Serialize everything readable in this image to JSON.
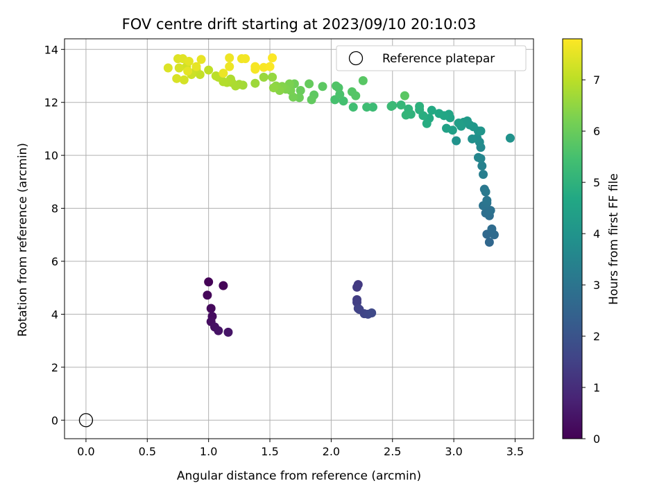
{
  "chart_data": {
    "type": "scatter",
    "title": "FOV centre drift starting at 2023/09/10 20:10:03",
    "xlabel": "Angular distance from reference (arcmin)",
    "ylabel": "Rotation from reference (arcmin)",
    "xlim": [
      -0.175,
      3.65
    ],
    "ylim": [
      -0.7,
      14.4
    ],
    "xticks": [
      0.0,
      0.5,
      1.0,
      1.5,
      2.0,
      2.5,
      3.0,
      3.5
    ],
    "xtick_labels": [
      "0.0",
      "0.5",
      "1.0",
      "1.5",
      "2.0",
      "2.5",
      "3.0",
      "3.5"
    ],
    "yticks": [
      0,
      2,
      4,
      6,
      8,
      10,
      12,
      14
    ],
    "ytick_labels": [
      "0",
      "2",
      "4",
      "6",
      "8",
      "10",
      "12",
      "14"
    ],
    "grid": true,
    "colorbar": {
      "label": "Hours from first FF file",
      "colormap": "viridis",
      "range": [
        0,
        7.8
      ],
      "ticks": [
        0,
        1,
        2,
        3,
        4,
        5,
        6,
        7
      ],
      "tick_labels": [
        "0",
        "1",
        "2",
        "3",
        "4",
        "5",
        "6",
        "7"
      ]
    },
    "legend": {
      "placement": "top-right",
      "entries": [
        "Reference platepar"
      ]
    },
    "reference_point": {
      "x": 0.0,
      "y": 0.0
    },
    "series": [
      {
        "values": [
          {
            "x": 1.0,
            "y": 5.22,
            "c": 0.05
          },
          {
            "x": 1.12,
            "y": 5.08,
            "c": 0.1
          },
          {
            "x": 0.99,
            "y": 4.72,
            "c": 0.15
          },
          {
            "x": 1.02,
            "y": 4.22,
            "c": 0.2
          },
          {
            "x": 1.03,
            "y": 3.92,
            "c": 0.25
          },
          {
            "x": 1.02,
            "y": 3.72,
            "c": 0.3
          },
          {
            "x": 1.05,
            "y": 3.52,
            "c": 0.35
          },
          {
            "x": 1.08,
            "y": 3.38,
            "c": 0.4
          },
          {
            "x": 1.16,
            "y": 3.32,
            "c": 0.45
          },
          {
            "x": 2.22,
            "y": 5.12,
            "c": 1.3
          },
          {
            "x": 2.21,
            "y": 5.02,
            "c": 1.35
          },
          {
            "x": 2.21,
            "y": 4.55,
            "c": 1.4
          },
          {
            "x": 2.21,
            "y": 4.45,
            "c": 1.45
          },
          {
            "x": 2.22,
            "y": 4.22,
            "c": 1.5
          },
          {
            "x": 2.23,
            "y": 4.18,
            "c": 1.55
          },
          {
            "x": 2.27,
            "y": 4.02,
            "c": 1.6
          },
          {
            "x": 2.3,
            "y": 4.0,
            "c": 1.65
          },
          {
            "x": 2.33,
            "y": 4.05,
            "c": 1.7
          },
          {
            "x": 3.29,
            "y": 6.72,
            "c": 2.6
          },
          {
            "x": 3.27,
            "y": 7.02,
            "c": 2.65
          },
          {
            "x": 3.33,
            "y": 7.0,
            "c": 2.7
          },
          {
            "x": 3.31,
            "y": 7.22,
            "c": 2.75
          },
          {
            "x": 3.29,
            "y": 7.72,
            "c": 2.8
          },
          {
            "x": 3.26,
            "y": 7.82,
            "c": 2.85
          },
          {
            "x": 3.3,
            "y": 7.92,
            "c": 2.9
          },
          {
            "x": 3.24,
            "y": 8.1,
            "c": 2.95
          },
          {
            "x": 3.27,
            "y": 8.2,
            "c": 3.0
          },
          {
            "x": 3.27,
            "y": 8.3,
            "c": 3.05
          },
          {
            "x": 3.25,
            "y": 8.72,
            "c": 3.1
          },
          {
            "x": 3.26,
            "y": 8.62,
            "c": 3.15
          },
          {
            "x": 3.24,
            "y": 9.28,
            "c": 3.3
          },
          {
            "x": 3.23,
            "y": 9.6,
            "c": 3.4
          },
          {
            "x": 3.22,
            "y": 9.88,
            "c": 3.5
          },
          {
            "x": 3.2,
            "y": 9.92,
            "c": 3.55
          },
          {
            "x": 3.22,
            "y": 10.3,
            "c": 3.65
          },
          {
            "x": 3.21,
            "y": 10.5,
            "c": 3.75
          },
          {
            "x": 3.19,
            "y": 10.65,
            "c": 3.85
          },
          {
            "x": 3.15,
            "y": 10.62,
            "c": 3.9
          },
          {
            "x": 3.02,
            "y": 10.55,
            "c": 3.95
          },
          {
            "x": 3.2,
            "y": 10.92,
            "c": 4.0
          },
          {
            "x": 3.22,
            "y": 10.92,
            "c": 4.05
          },
          {
            "x": 3.16,
            "y": 11.08,
            "c": 4.1
          },
          {
            "x": 3.13,
            "y": 11.15,
            "c": 4.15
          },
          {
            "x": 3.11,
            "y": 11.3,
            "c": 4.2
          },
          {
            "x": 3.08,
            "y": 11.25,
            "c": 4.25
          },
          {
            "x": 3.06,
            "y": 11.1,
            "c": 4.3
          },
          {
            "x": 3.04,
            "y": 11.22,
            "c": 4.35
          },
          {
            "x": 2.99,
            "y": 10.95,
            "c": 4.4
          },
          {
            "x": 2.94,
            "y": 11.02,
            "c": 4.45
          },
          {
            "x": 2.97,
            "y": 11.42,
            "c": 4.5
          },
          {
            "x": 2.96,
            "y": 11.55,
            "c": 4.55
          },
          {
            "x": 2.92,
            "y": 11.5,
            "c": 4.6
          },
          {
            "x": 2.88,
            "y": 11.58,
            "c": 4.65
          },
          {
            "x": 2.82,
            "y": 11.7,
            "c": 4.7
          },
          {
            "x": 2.8,
            "y": 11.4,
            "c": 4.75
          },
          {
            "x": 2.78,
            "y": 11.2,
            "c": 4.8
          },
          {
            "x": 2.75,
            "y": 11.5,
            "c": 4.85
          },
          {
            "x": 2.72,
            "y": 11.72,
            "c": 4.9
          },
          {
            "x": 2.72,
            "y": 11.85,
            "c": 4.95
          },
          {
            "x": 2.65,
            "y": 11.55,
            "c": 5.0
          },
          {
            "x": 2.63,
            "y": 11.75,
            "c": 5.05
          },
          {
            "x": 2.61,
            "y": 11.52,
            "c": 5.1
          },
          {
            "x": 2.57,
            "y": 11.9,
            "c": 5.15
          },
          {
            "x": 2.5,
            "y": 11.88,
            "c": 5.2
          },
          {
            "x": 2.49,
            "y": 11.85,
            "c": 5.25
          },
          {
            "x": 2.34,
            "y": 11.82,
            "c": 5.3
          },
          {
            "x": 2.29,
            "y": 11.82,
            "c": 5.35
          },
          {
            "x": 2.18,
            "y": 11.82,
            "c": 5.4
          },
          {
            "x": 2.1,
            "y": 12.05,
            "c": 5.45
          },
          {
            "x": 2.03,
            "y": 12.1,
            "c": 5.5
          },
          {
            "x": 2.07,
            "y": 12.3,
            "c": 5.55
          },
          {
            "x": 2.06,
            "y": 12.55,
            "c": 5.6
          },
          {
            "x": 2.04,
            "y": 12.62,
            "c": 5.65
          },
          {
            "x": 2.17,
            "y": 12.4,
            "c": 5.7
          },
          {
            "x": 2.2,
            "y": 12.25,
            "c": 5.72
          },
          {
            "x": 2.26,
            "y": 12.82,
            "c": 5.75
          },
          {
            "x": 2.6,
            "y": 12.25,
            "c": 5.78
          },
          {
            "x": 1.93,
            "y": 12.6,
            "c": 5.8
          },
          {
            "x": 1.86,
            "y": 12.28,
            "c": 5.85
          },
          {
            "x": 1.84,
            "y": 12.1,
            "c": 5.9
          },
          {
            "x": 1.82,
            "y": 12.7,
            "c": 5.95
          },
          {
            "x": 1.75,
            "y": 12.45,
            "c": 6.0
          },
          {
            "x": 1.74,
            "y": 12.18,
            "c": 6.05
          },
          {
            "x": 1.7,
            "y": 12.7,
            "c": 6.1
          },
          {
            "x": 1.69,
            "y": 12.2,
            "c": 6.15
          },
          {
            "x": 1.67,
            "y": 12.45,
            "c": 6.2
          },
          {
            "x": 1.66,
            "y": 12.7,
            "c": 6.25
          },
          {
            "x": 1.63,
            "y": 12.5,
            "c": 6.3
          },
          {
            "x": 1.6,
            "y": 12.6,
            "c": 6.35
          },
          {
            "x": 1.58,
            "y": 12.45,
            "c": 6.4
          },
          {
            "x": 1.55,
            "y": 12.62,
            "c": 6.45
          },
          {
            "x": 1.53,
            "y": 12.55,
            "c": 6.5
          },
          {
            "x": 1.52,
            "y": 12.95,
            "c": 6.55
          },
          {
            "x": 1.45,
            "y": 12.95,
            "c": 6.6
          },
          {
            "x": 1.38,
            "y": 12.72,
            "c": 6.65
          },
          {
            "x": 1.28,
            "y": 12.65,
            "c": 6.7
          },
          {
            "x": 1.25,
            "y": 12.68,
            "c": 6.75
          },
          {
            "x": 1.22,
            "y": 12.62,
            "c": 6.8
          },
          {
            "x": 1.19,
            "y": 12.75,
            "c": 6.82
          },
          {
            "x": 1.18,
            "y": 12.88,
            "c": 6.85
          },
          {
            "x": 1.15,
            "y": 12.75,
            "c": 6.88
          },
          {
            "x": 1.12,
            "y": 12.78,
            "c": 6.9
          },
          {
            "x": 1.08,
            "y": 12.95,
            "c": 6.95
          },
          {
            "x": 1.06,
            "y": 13.0,
            "c": 7.0
          },
          {
            "x": 1.0,
            "y": 13.22,
            "c": 7.05
          },
          {
            "x": 0.93,
            "y": 13.05,
            "c": 7.1
          },
          {
            "x": 0.9,
            "y": 13.25,
            "c": 7.15
          },
          {
            "x": 0.86,
            "y": 13.05,
            "c": 7.2
          },
          {
            "x": 0.82,
            "y": 13.35,
            "c": 7.25
          },
          {
            "x": 0.8,
            "y": 12.85,
            "c": 7.3
          },
          {
            "x": 0.76,
            "y": 13.3,
            "c": 7.32
          },
          {
            "x": 0.74,
            "y": 12.9,
            "c": 7.35
          },
          {
            "x": 0.67,
            "y": 13.3,
            "c": 7.38
          },
          {
            "x": 0.75,
            "y": 13.65,
            "c": 7.42
          },
          {
            "x": 0.79,
            "y": 13.65,
            "c": 7.45
          },
          {
            "x": 0.84,
            "y": 13.55,
            "c": 7.48
          },
          {
            "x": 0.83,
            "y": 13.18,
            "c": 7.5
          },
          {
            "x": 0.9,
            "y": 13.35,
            "c": 7.52
          },
          {
            "x": 0.94,
            "y": 13.62,
            "c": 7.55
          },
          {
            "x": 1.12,
            "y": 13.1,
            "c": 7.58
          },
          {
            "x": 1.17,
            "y": 13.35,
            "c": 7.6
          },
          {
            "x": 1.17,
            "y": 13.68,
            "c": 7.62
          },
          {
            "x": 1.27,
            "y": 13.65,
            "c": 7.65
          },
          {
            "x": 1.3,
            "y": 13.65,
            "c": 7.68
          },
          {
            "x": 1.38,
            "y": 13.25,
            "c": 7.7
          },
          {
            "x": 1.38,
            "y": 13.35,
            "c": 7.72
          },
          {
            "x": 1.45,
            "y": 13.32,
            "c": 7.74
          },
          {
            "x": 1.5,
            "y": 13.35,
            "c": 7.76
          },
          {
            "x": 1.52,
            "y": 13.68,
            "c": 7.78
          },
          {
            "x": 3.46,
            "y": 10.65,
            "c": 3.95
          }
        ]
      }
    ]
  }
}
